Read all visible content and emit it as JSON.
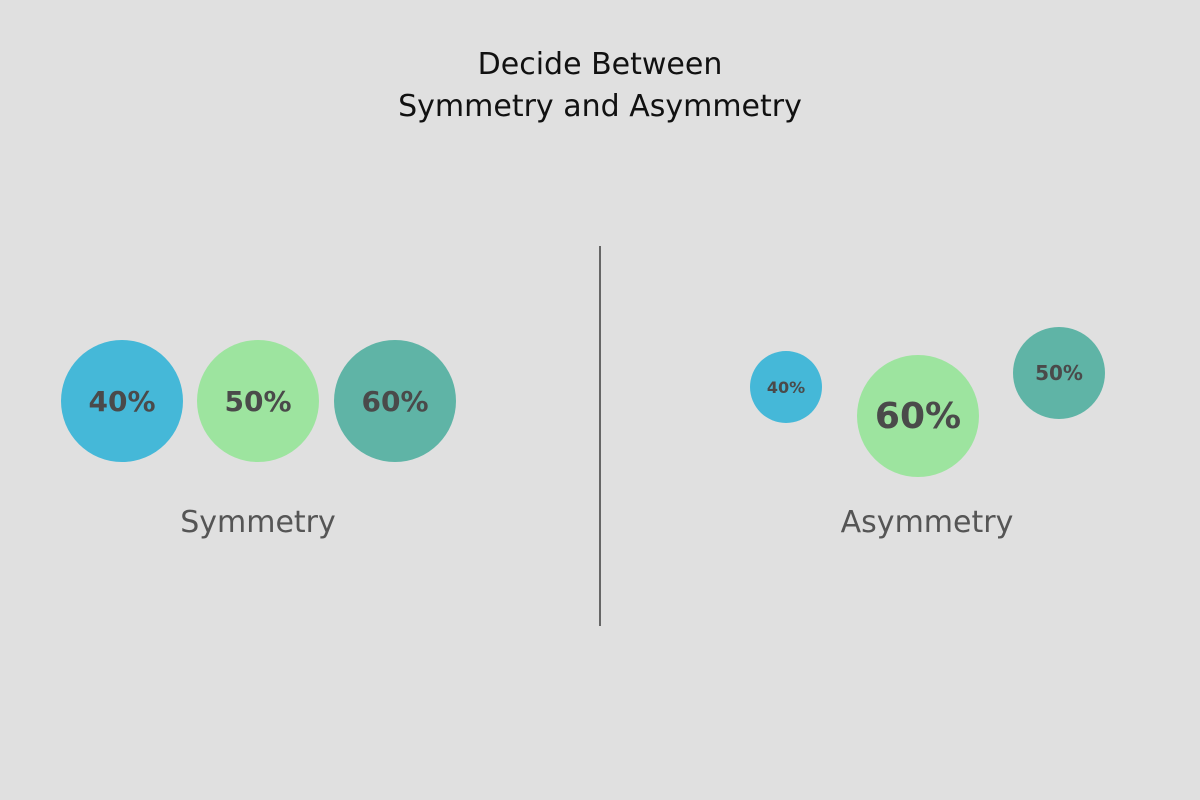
{
  "title": {
    "line1": "Decide Between",
    "line2": "Symmetry and Asymmetry"
  },
  "colors": {
    "blue": "#45b8d8",
    "green": "#9de49f",
    "teal": "#5fb4a6",
    "background": "#e0e0e0"
  },
  "symmetry": {
    "label": "Symmetry",
    "circles": [
      {
        "text": "40%",
        "color": "blue"
      },
      {
        "text": "50%",
        "color": "green"
      },
      {
        "text": "60%",
        "color": "teal"
      }
    ]
  },
  "asymmetry": {
    "label": "Asymmetry",
    "circles": [
      {
        "text": "40%",
        "color": "blue"
      },
      {
        "text": "60%",
        "color": "green"
      },
      {
        "text": "50%",
        "color": "teal"
      }
    ]
  }
}
